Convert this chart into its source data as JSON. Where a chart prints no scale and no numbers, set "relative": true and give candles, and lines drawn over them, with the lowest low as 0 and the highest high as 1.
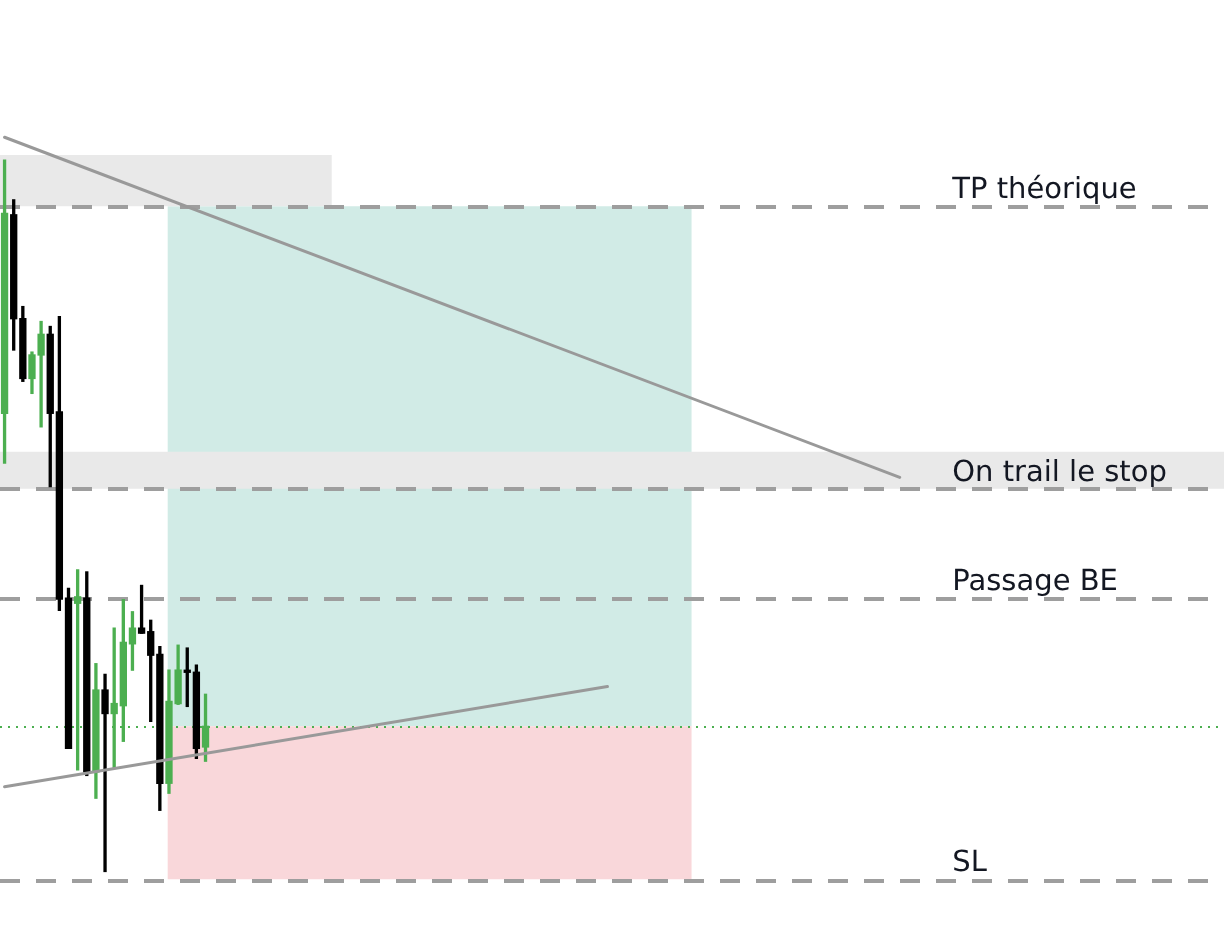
{
  "chart_data": {
    "type": "candlestick",
    "relative": true,
    "legend": false,
    "grid": false,
    "categories": [
      null,
      null,
      null,
      null,
      null,
      null,
      null,
      null,
      null,
      null,
      null,
      null,
      null,
      null,
      null,
      null,
      null,
      null,
      null,
      null,
      null,
      null,
      null,
      null,
      null,
      null,
      null,
      null,
      null,
      null,
      null,
      null,
      null,
      null,
      null,
      null,
      null,
      null,
      null,
      null,
      null,
      null,
      null,
      null,
      null,
      null,
      null,
      null,
      null,
      null,
      null,
      null,
      null,
      null,
      null,
      null,
      null,
      null,
      null,
      null,
      null,
      null,
      null,
      null,
      null,
      null,
      null,
      null,
      null,
      null,
      null,
      null,
      null,
      null,
      null,
      null,
      null,
      null,
      null,
      null,
      null,
      null,
      null,
      null,
      null,
      null,
      null,
      null,
      null,
      null,
      null,
      null,
      null,
      null,
      null,
      null,
      null,
      null,
      null,
      null,
      null,
      null,
      null,
      null,
      null,
      null,
      null,
      null,
      null,
      null,
      null,
      null,
      null,
      null,
      null,
      null,
      null,
      null,
      null,
      null,
      null,
      null,
      null,
      null,
      null,
      null,
      null,
      null,
      null,
      null,
      null,
      null,
      null,
      null
    ],
    "ohlc": [
      [
        0.644,
        1.0,
        0.574,
        0.925
      ],
      [
        0.923,
        0.944,
        0.733,
        0.777
      ],
      [
        0.777,
        0.794,
        0.689,
        0.693
      ],
      [
        0.693,
        0.73,
        0.672,
        0.726
      ],
      [
        0.726,
        0.773,
        0.625,
        0.755
      ],
      [
        0.755,
        0.766,
        0.541,
        0.644
      ],
      [
        0.646,
        0.78,
        0.367,
        0.383
      ],
      [
        0.384,
        0.398,
        0.173,
        0.173
      ],
      [
        0.377,
        0.424,
        0.143,
        0.386
      ],
      [
        0.384,
        0.421,
        0.135,
        0.14
      ],
      [
        0.14,
        0.292,
        0.103,
        0.255
      ],
      [
        0.255,
        0.277,
        0,
        0.222
      ],
      [
        0.222,
        0.342,
        0.145,
        0.236
      ],
      [
        0.233,
        0.382,
        0.183,
        0.322
      ],
      [
        0.32,
        0.365,
        0.283,
        0.342
      ],
      [
        0.342,
        0.402,
        0.335,
        0.335
      ],
      [
        0.337,
        0.353,
        0.211,
        0.304
      ],
      [
        0.305,
        0.316,
        0.086,
        0.124
      ],
      [
        0.124,
        0.283,
        0.11,
        0.239
      ],
      [
        0.236,
        0.318,
        0.235,
        0.283
      ],
      [
        0.282,
        0.314,
        0.232,
        0.28
      ],
      [
        0.28,
        0.29,
        0.159,
        0.173
      ],
      [
        0.175,
        0.249,
        0.155,
        0.204
      ],
      null,
      null,
      null,
      null,
      null,
      null,
      null,
      null,
      null,
      null,
      null,
      null,
      null,
      null,
      null,
      null,
      null,
      null,
      null,
      null,
      null,
      null,
      null,
      null,
      null,
      null,
      null,
      null,
      null,
      null,
      null,
      null,
      null,
      null,
      null,
      null,
      null,
      null,
      null,
      null,
      null,
      null,
      null,
      null,
      null,
      null,
      null,
      null,
      null,
      null,
      null,
      null,
      null,
      null,
      null,
      null,
      null,
      null,
      null,
      null,
      null,
      null,
      null,
      null,
      null,
      null,
      null,
      null,
      null,
      null,
      null,
      null,
      null,
      null,
      null,
      null,
      null,
      null,
      null,
      null,
      null,
      null,
      null,
      null,
      null,
      null,
      null,
      null,
      null,
      null,
      null,
      null,
      null,
      null,
      null,
      null,
      null,
      null,
      null,
      null,
      null,
      null,
      null,
      null,
      null,
      null,
      null,
      null,
      null,
      null,
      null
    ],
    "colors": [
      "#4caf50",
      "#000000",
      "#000000",
      "#4caf50",
      "#4caf50",
      "#000000",
      "#000000",
      "#000000",
      "#4caf50",
      "#000000",
      "#4caf50",
      "#000000",
      "#4caf50",
      "#4caf50",
      "#4caf50",
      "#000000",
      "#000000",
      "#000000",
      "#4caf50",
      "#4caf50",
      "#000000",
      "#000000",
      "#4caf50",
      null,
      null,
      null,
      null,
      null,
      null,
      null,
      null,
      null,
      null,
      null,
      null,
      null,
      null,
      null,
      null,
      null,
      null,
      null,
      null,
      null,
      null,
      null,
      null,
      null,
      null,
      null,
      null,
      null,
      null,
      null,
      null,
      null,
      null,
      null,
      null,
      null,
      null,
      null,
      null,
      null,
      null,
      null,
      null,
      null,
      null,
      null,
      null,
      null,
      null,
      null,
      null,
      null,
      null,
      null,
      null,
      null,
      null,
      null,
      null,
      null,
      null,
      null,
      null,
      null,
      null,
      null,
      null,
      null,
      null,
      null,
      null,
      null,
      null,
      null,
      null,
      null,
      null,
      null,
      null,
      null,
      null,
      null,
      null,
      null,
      null,
      null,
      null,
      null,
      null,
      null,
      null,
      null,
      null,
      null,
      null,
      null,
      null,
      null,
      null,
      null,
      null,
      null,
      null,
      null,
      null,
      null,
      null,
      null,
      null,
      null
    ],
    "series": [
      {
        "type": "line",
        "color": "#999999",
        "values": [
          1.032,
          null,
          null,
          null,
          null,
          null,
          null,
          null,
          null,
          null,
          null,
          null,
          null,
          null,
          null,
          null,
          null,
          null,
          null,
          null,
          null,
          null,
          null,
          null,
          null,
          null,
          null,
          null,
          null,
          null,
          null,
          null,
          null,
          null,
          null,
          null,
          null,
          null,
          null,
          null,
          null,
          null,
          null,
          null,
          null,
          null,
          null,
          null,
          null,
          null,
          null,
          null,
          null,
          null,
          null,
          null,
          null,
          null,
          null,
          null,
          null,
          null,
          null,
          null,
          null,
          null,
          null,
          null,
          null,
          null,
          null,
          null,
          null,
          null,
          null,
          null,
          null,
          null,
          null,
          null,
          null,
          null,
          null,
          null,
          null,
          null,
          null,
          null,
          null,
          null,
          null,
          null,
          null,
          null,
          null,
          null,
          null,
          null,
          0.554,
          null,
          null,
          null,
          null,
          null,
          null,
          null,
          null,
          null,
          null,
          null,
          null,
          null,
          null,
          null,
          null,
          null,
          null,
          null,
          null,
          null,
          null,
          null,
          null,
          null,
          null,
          null,
          null,
          null,
          null,
          null,
          null,
          null,
          null,
          null
        ]
      },
      {
        "type": "line",
        "color": "#999999",
        "values": [
          0.119,
          null,
          null,
          null,
          null,
          null,
          null,
          null,
          null,
          null,
          null,
          null,
          null,
          null,
          null,
          null,
          null,
          null,
          null,
          null,
          null,
          null,
          null,
          null,
          null,
          null,
          null,
          null,
          null,
          null,
          null,
          null,
          null,
          null,
          null,
          null,
          null,
          null,
          null,
          null,
          null,
          null,
          null,
          null,
          null,
          null,
          null,
          null,
          null,
          null,
          null,
          null,
          null,
          null,
          null,
          null,
          null,
          null,
          null,
          null,
          null,
          null,
          null,
          null,
          null,
          null,
          0.26,
          null,
          null,
          null,
          null,
          null,
          null,
          null,
          null,
          null,
          null,
          null,
          null,
          null,
          null,
          null,
          null,
          null,
          null,
          null,
          null,
          null,
          null,
          null,
          null,
          null,
          null,
          null,
          null,
          null,
          null,
          null,
          null,
          null,
          null,
          null,
          null,
          null,
          null,
          null,
          null,
          null,
          null,
          null,
          null,
          null,
          null,
          null,
          null,
          null,
          null,
          null,
          null,
          null,
          null,
          null,
          null,
          null,
          null,
          null,
          null,
          null,
          null,
          null,
          null,
          null,
          null,
          null
        ]
      }
    ],
    "ref_lines": [
      {
        "axis": "y",
        "value": 0.935,
        "label": "TP théorique",
        "color": "#9e9e9e",
        "line_style": "dashed"
      },
      {
        "axis": "y",
        "value": 0.538,
        "label": "On trail le stop",
        "color": "#9e9e9e",
        "line_style": "dashed"
      },
      {
        "axis": "y",
        "value": 0.385,
        "label": "Passage BE",
        "color": "#9e9e9e",
        "line_style": "dashed"
      },
      {
        "axis": "y",
        "value": -0.011,
        "label": "SL",
        "color": "#9e9e9e",
        "line_style": "dashed"
      },
      {
        "axis": "y",
        "value": 0.204,
        "color": "#4caf50",
        "line_style": "dotted"
      }
    ],
    "bands": [
      {
        "axis": "y",
        "from": 0.204,
        "to": 0.935,
        "color": "#d1ebe6"
      },
      {
        "axis": "y",
        "from": -0.011,
        "to": 0.204,
        "color": "#f9d7da"
      },
      {
        "axis": "y",
        "from": 0.935,
        "to": 1.007,
        "color": "#e9e9e9"
      },
      {
        "axis": "y",
        "from": 0.538,
        "to": 0.59,
        "color": "#e9e9e9"
      }
    ]
  }
}
